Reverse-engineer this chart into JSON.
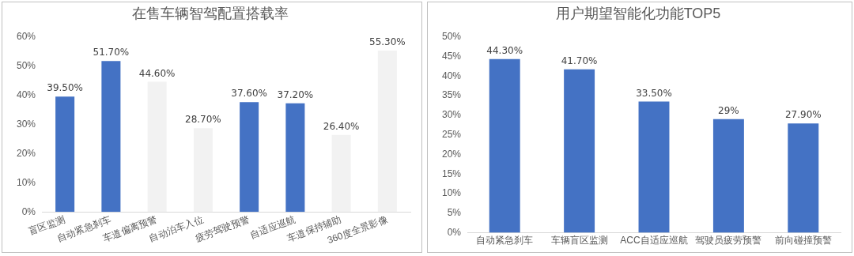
{
  "chart_data": [
    {
      "type": "bar",
      "title": "在售车辆智驾配置搭载率",
      "categories": [
        "盲区监测",
        "自动紧急刹车",
        "车道偏离预警",
        "自动泊车入位",
        "疲劳驾驶预警",
        "自适应巡航",
        "车道保持辅助",
        "360度全景影像"
      ],
      "values": [
        39.5,
        51.7,
        44.6,
        28.7,
        37.6,
        37.2,
        26.4,
        55.3
      ],
      "colors": [
        "#4472c4",
        "#4472c4",
        "#f2f2f2",
        "#f2f2f2",
        "#4472c4",
        "#4472c4",
        "#f2f2f2",
        "#f2f2f2"
      ],
      "value_labels": [
        "39.50%",
        "51.70%",
        "44.60%",
        "28.70%",
        "37.60%",
        "37.20%",
        "26.40%",
        "55.30%"
      ],
      "ylim": [
        0,
        60
      ],
      "yticks": [
        {
          "value": 0,
          "label": "0%"
        },
        {
          "value": 10,
          "label": "10%"
        },
        {
          "value": 20,
          "label": "20%"
        },
        {
          "value": 30,
          "label": "30%"
        },
        {
          "value": 40,
          "label": "40%"
        },
        {
          "value": 50,
          "label": "50%"
        },
        {
          "value": 60,
          "label": "60%"
        }
      ],
      "grid": false,
      "legend": false
    },
    {
      "type": "bar",
      "title": "用户期望智能化功能TOP5",
      "categories": [
        "自动紧急刹车",
        "车辆盲区监测",
        "ACC自适应巡航",
        "驾驶员疲劳预警",
        "前向碰撞预警"
      ],
      "values": [
        44.3,
        41.7,
        33.5,
        29,
        27.9
      ],
      "color": "#4472c4",
      "value_labels": [
        "44.30%",
        "41.70%",
        "33.50%",
        "29%",
        "27.90%"
      ],
      "ylim": [
        0,
        50
      ],
      "yticks": [
        {
          "value": 0,
          "label": "0%"
        },
        {
          "value": 5,
          "label": "5%"
        },
        {
          "value": 10,
          "label": "10%"
        },
        {
          "value": 15,
          "label": "15%"
        },
        {
          "value": 20,
          "label": "20%"
        },
        {
          "value": 25,
          "label": "25%"
        },
        {
          "value": 30,
          "label": "30%"
        },
        {
          "value": 35,
          "label": "35%"
        },
        {
          "value": 40,
          "label": "40%"
        },
        {
          "value": 45,
          "label": "45%"
        },
        {
          "value": 50,
          "label": "50%"
        }
      ],
      "grid": false,
      "legend": false
    }
  ]
}
